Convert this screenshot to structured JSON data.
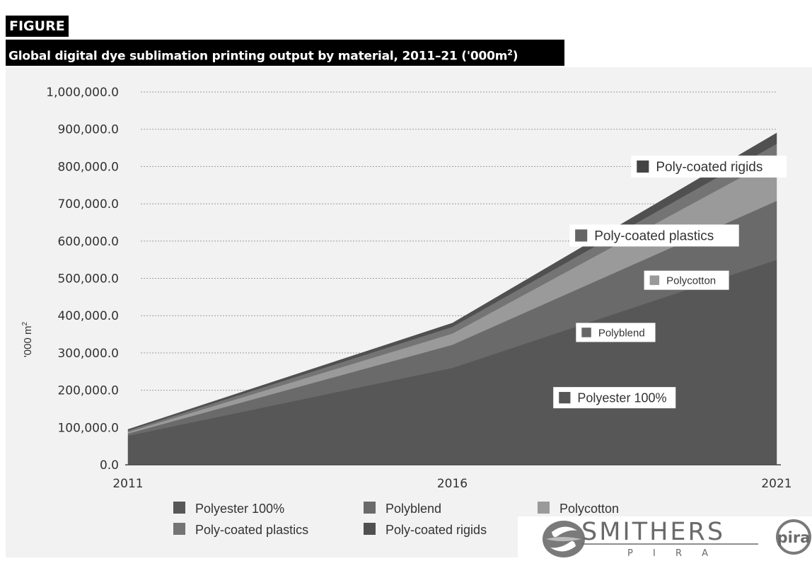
{
  "header": {
    "tag": "FIGURE",
    "title_main": "Global digital dye sublimation printing output by material, 2011–21 ('000m",
    "title_sup": "2",
    "title_end": ")"
  },
  "chart_data": {
    "type": "area",
    "stacked": true,
    "x": [
      "2011",
      "2016",
      "2021"
    ],
    "ylabel_main": "'000 m",
    "ylabel_sup": "2",
    "ylim": [
      0,
      1000000
    ],
    "yticks": [
      "0.0",
      "100,000.0",
      "200,000.0",
      "300,000.0",
      "400,000.0",
      "500,000.0",
      "600,000.0",
      "700,000.0",
      "800,000.0",
      "900,000.0",
      "1,000,000.0"
    ],
    "grid": true,
    "series": [
      {
        "name": "Polyester 100%",
        "values": [
          78000,
          260000,
          550000
        ],
        "color": "#575757"
      },
      {
        "name": "Polyblend",
        "values": [
          6000,
          62000,
          158000
        ],
        "color": "#6a6a6a"
      },
      {
        "name": "Polycotton",
        "values": [
          4000,
          30000,
          115000
        ],
        "color": "#9a9a9a"
      },
      {
        "name": "Poly-coated plastics",
        "values": [
          4000,
          18000,
          38000
        ],
        "color": "#747474"
      },
      {
        "name": "Poly-coated rigids",
        "values": [
          3000,
          10000,
          29000
        ],
        "color": "#505050"
      }
    ],
    "annotations": [
      "Poly-coated rigids",
      "Poly-coated plastics",
      "Polycotton",
      "Polyblend",
      "Polyester 100%"
    ],
    "legend": "bottom"
  },
  "logo": {
    "name": "SMITHERS",
    "sub": "P I R A",
    "badge": "pira"
  }
}
